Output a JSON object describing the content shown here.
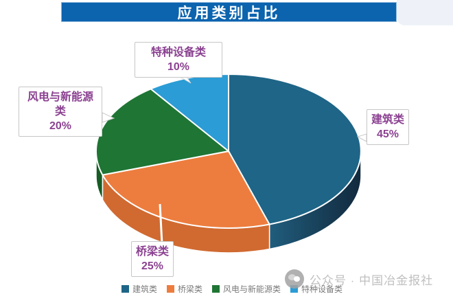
{
  "title": "应用类别占比",
  "chart_data": {
    "type": "pie",
    "title": "应用类别占比",
    "categories": [
      "建筑类",
      "桥梁类",
      "风电与新能源类",
      "特种设备类"
    ],
    "values": [
      45,
      25,
      20,
      10
    ],
    "unit": "%",
    "colors": [
      "#1e6587",
      "#ed7d3e",
      "#1f7534",
      "#2b9cd5"
    ],
    "side_colors": [
      {
        "from": "#205d7d",
        "to": "#12293d"
      },
      "#d06a31",
      "#175c25",
      "#2b9cd5"
    ],
    "start_angle_deg": 0,
    "direction": "clockwise",
    "style": "3d",
    "legend_position": "bottom",
    "data_label_color": "#8b4191"
  },
  "callouts": {
    "construction": {
      "name": "建筑类",
      "value": "45%"
    },
    "bridge": {
      "name": "桥梁类",
      "value": "25%"
    },
    "wind": {
      "name": "风电与新能源类",
      "value": "20%"
    },
    "special": {
      "name": "特种设备类",
      "value": "10%"
    }
  },
  "legend": {
    "items": [
      {
        "label": "建筑类"
      },
      {
        "label": "桥梁类"
      },
      {
        "label": "风电与新能源类"
      },
      {
        "label": "特种设备类"
      }
    ]
  },
  "watermark": {
    "text": "公众号 · 中国冶金报社"
  }
}
